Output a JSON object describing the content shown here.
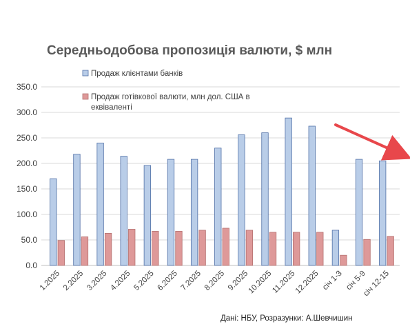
{
  "title": "Середньодобова пропозиція валюти, $ млн",
  "source": "Дані: НБУ, Розразунки: А.Шевчишин",
  "chart_data": {
    "type": "bar",
    "categories": [
      "1.2025",
      "2.2025",
      "3.2025",
      "4.2025",
      "5.2025",
      "6.2025",
      "7.2025",
      "8.2025",
      "9.2025",
      "10.2025",
      "11.2025",
      "12.2025",
      "січ 1-3",
      "січ 5-9",
      "січ 12-15"
    ],
    "series": [
      {
        "name": "Продаж клієнтами банків",
        "color": "#b9cde8",
        "stroke": "#4f6fa6",
        "values": [
          170,
          218,
          240,
          214,
          196,
          208,
          208,
          230,
          256,
          260,
          289,
          273,
          69,
          208,
          205
        ]
      },
      {
        "name": "Продаж готівкової валюти, млн дол. США в еквіваленті",
        "color": "#de9999",
        "stroke": "#b5706f",
        "values": [
          49,
          56,
          63,
          71,
          67,
          67,
          69,
          73,
          69,
          65,
          65,
          65,
          20,
          51,
          57
        ]
      }
    ],
    "yticks": [
      "0.0",
      "50.0",
      "100.0",
      "150.0",
      "200.0",
      "250.0",
      "300.0",
      "350.0"
    ],
    "ylim": [
      0,
      350
    ],
    "grid": true,
    "legend_position": "top-left-inside",
    "annotation": {
      "type": "arrow",
      "color": "#e8474b"
    }
  }
}
